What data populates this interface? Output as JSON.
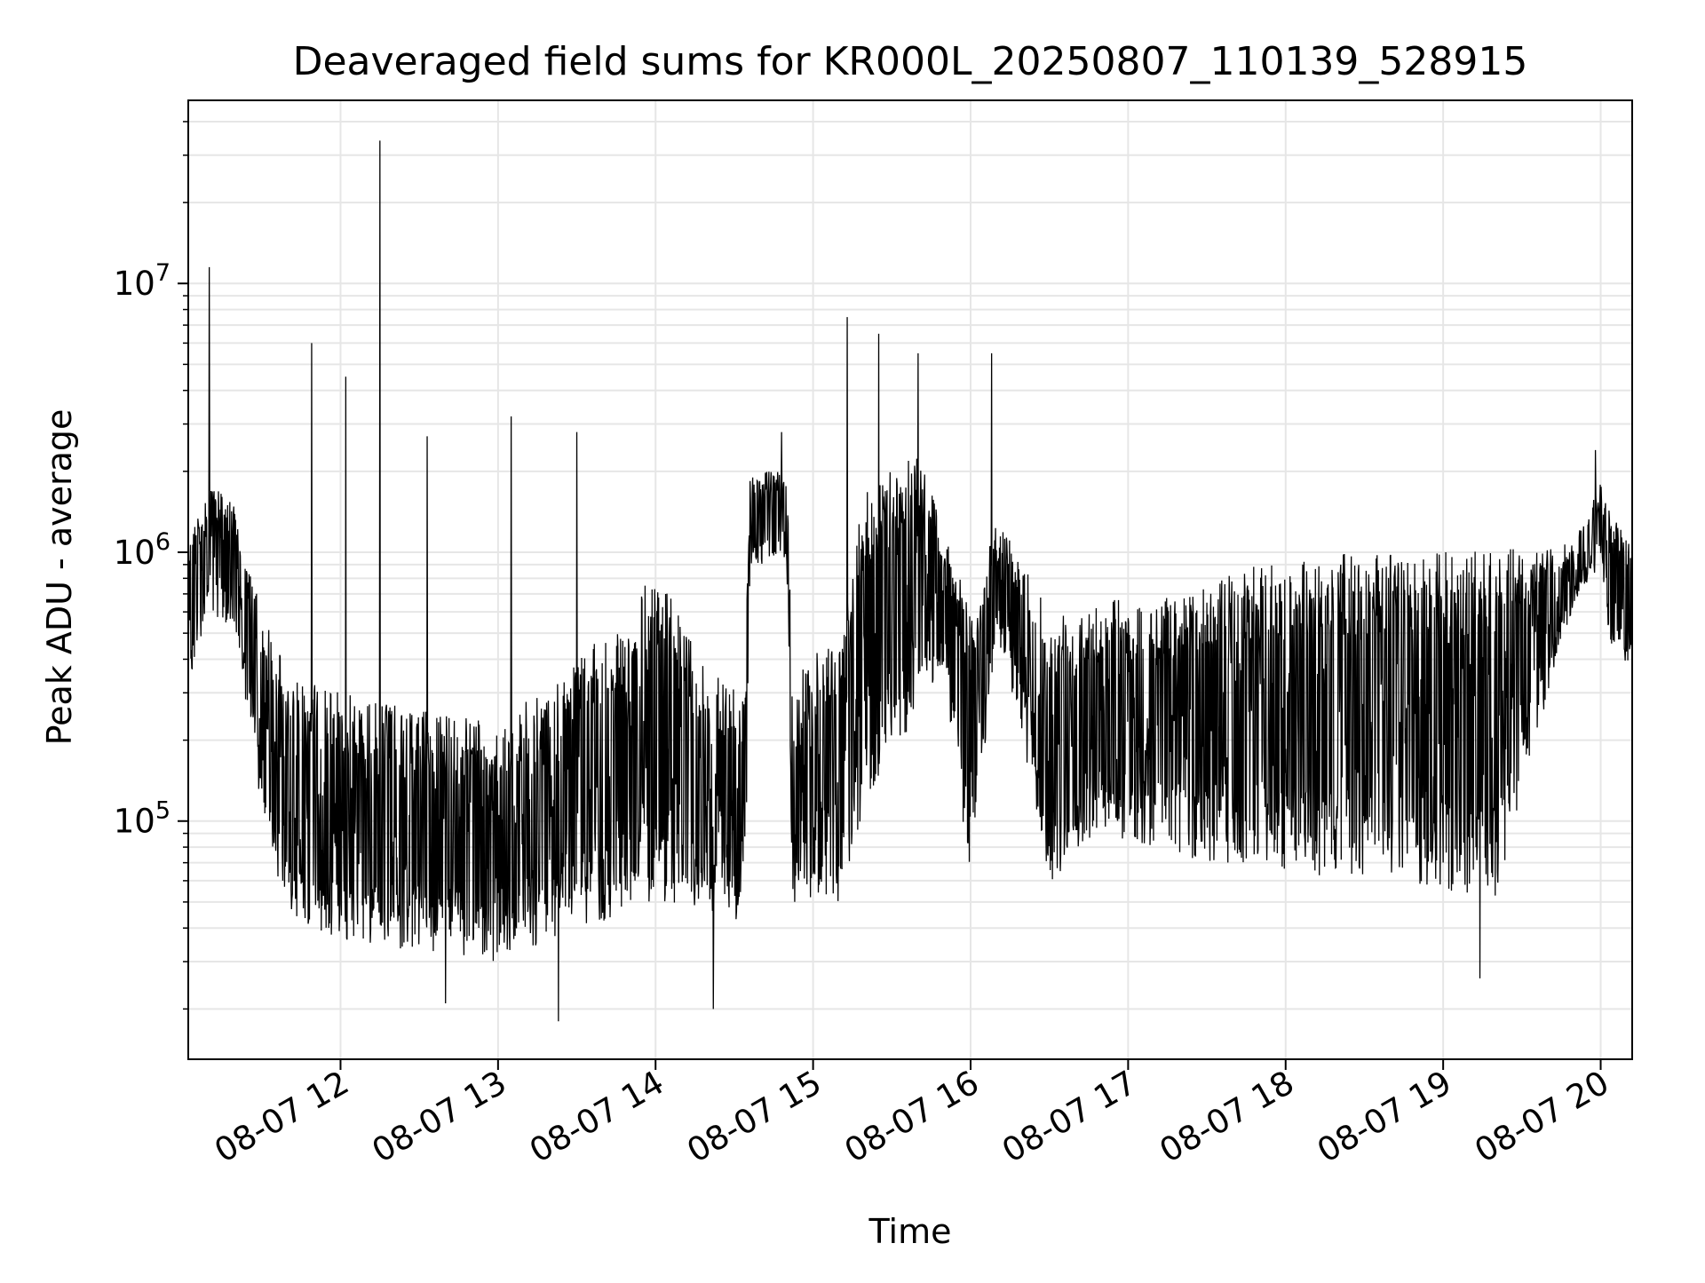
{
  "chart_data": {
    "type": "line",
    "title": "Deaveraged field sums for KR000L_20250807_110139_528915",
    "xlabel": "Time",
    "ylabel": "Peak ADU - average",
    "x_start": "2025-08-07 11:02",
    "x_end": "2025-08-07 20:12",
    "xlim": [
      "2025-08-07 11:02",
      "2025-08-07 20:12"
    ],
    "ylim": [
      13000,
      48000000
    ],
    "yscale": "log",
    "grid": true,
    "x_ticks": [
      "08-07 12",
      "08-07 13",
      "08-07 14",
      "08-07 15",
      "08-07 16",
      "08-07 17",
      "08-07 18",
      "08-07 19",
      "08-07 20"
    ],
    "y_ticks": [
      {
        "value": 100000,
        "base": "10",
        "exp": "5"
      },
      {
        "value": 1000000,
        "base": "10",
        "exp": "6"
      },
      {
        "value": 10000000,
        "base": "10",
        "exp": "7"
      }
    ],
    "series": [
      {
        "color": "#000000",
        "envelope": [
          {
            "time": "2025-08-07 11:02",
            "low": 300000,
            "high": 1100000
          },
          {
            "time": "2025-08-07 11:10",
            "low": 600000,
            "high": 1800000
          },
          {
            "time": "2025-08-07 11:20",
            "low": 500000,
            "high": 1500000
          },
          {
            "time": "2025-08-07 11:30",
            "low": 100000,
            "high": 600000
          },
          {
            "time": "2025-08-07 11:40",
            "low": 45000,
            "high": 350000
          },
          {
            "time": "2025-08-07 12:00",
            "low": 35000,
            "high": 300000
          },
          {
            "time": "2025-08-07 12:30",
            "low": 32000,
            "high": 260000
          },
          {
            "time": "2025-08-07 13:00",
            "low": 30000,
            "high": 230000
          },
          {
            "time": "2025-08-07 13:30",
            "low": 40000,
            "high": 400000
          },
          {
            "time": "2025-08-07 13:50",
            "low": 45000,
            "high": 600000
          },
          {
            "time": "2025-08-07 14:00",
            "low": 50000,
            "high": 900000
          },
          {
            "time": "2025-08-07 14:20",
            "low": 45000,
            "high": 350000
          },
          {
            "time": "2025-08-07 14:34",
            "low": 40000,
            "high": 320000
          },
          {
            "time": "2025-08-07 14:36",
            "low": 900000,
            "high": 2000000
          },
          {
            "time": "2025-08-07 14:50",
            "low": 900000,
            "high": 2000000
          },
          {
            "time": "2025-08-07 14:52",
            "low": 50000,
            "high": 400000
          },
          {
            "time": "2025-08-07 15:10",
            "low": 50000,
            "high": 450000
          },
          {
            "time": "2025-08-07 15:20",
            "low": 120000,
            "high": 1800000
          },
          {
            "time": "2025-08-07 15:40",
            "low": 250000,
            "high": 2500000
          },
          {
            "time": "2025-08-07 15:50",
            "low": 350000,
            "high": 1200000
          },
          {
            "time": "2025-08-07 16:00",
            "low": 60000,
            "high": 600000
          },
          {
            "time": "2025-08-07 16:10",
            "low": 500000,
            "high": 1300000
          },
          {
            "time": "2025-08-07 16:20",
            "low": 200000,
            "high": 1000000
          },
          {
            "time": "2025-08-07 16:30",
            "low": 55000,
            "high": 600000
          },
          {
            "time": "2025-08-07 16:50",
            "low": 90000,
            "high": 700000
          },
          {
            "time": "2025-08-07 17:10",
            "low": 80000,
            "high": 650000
          },
          {
            "time": "2025-08-07 17:30",
            "low": 70000,
            "high": 800000
          },
          {
            "time": "2025-08-07 18:00",
            "low": 65000,
            "high": 950000
          },
          {
            "time": "2025-08-07 18:30",
            "low": 60000,
            "high": 1000000
          },
          {
            "time": "2025-08-07 19:00",
            "low": 55000,
            "high": 1000000
          },
          {
            "time": "2025-08-07 19:20",
            "low": 50000,
            "high": 1050000
          },
          {
            "time": "2025-08-07 19:35",
            "low": 200000,
            "high": 1000000
          },
          {
            "time": "2025-08-07 19:50",
            "low": 650000,
            "high": 1100000
          },
          {
            "time": "2025-08-07 20:00",
            "low": 900000,
            "high": 1800000
          },
          {
            "time": "2025-08-07 20:05",
            "low": 350000,
            "high": 1400000
          },
          {
            "time": "2025-08-07 20:12",
            "low": 400000,
            "high": 1100000
          }
        ],
        "peaks": [
          {
            "time": "2025-08-07 11:10",
            "value": 11500000
          },
          {
            "time": "2025-08-07 11:49",
            "value": 6000000
          },
          {
            "time": "2025-08-07 12:02",
            "value": 4500000
          },
          {
            "time": "2025-08-07 12:15",
            "value": 34000000
          },
          {
            "time": "2025-08-07 12:33",
            "value": 2700000
          },
          {
            "time": "2025-08-07 13:05",
            "value": 3200000
          },
          {
            "time": "2025-08-07 13:30",
            "value": 2800000
          },
          {
            "time": "2025-08-07 14:48",
            "value": 2800000
          },
          {
            "time": "2025-08-07 15:13",
            "value": 7500000
          },
          {
            "time": "2025-08-07 15:25",
            "value": 6500000
          },
          {
            "time": "2025-08-07 15:40",
            "value": 5500000
          },
          {
            "time": "2025-08-07 16:08",
            "value": 5500000
          },
          {
            "time": "2025-08-07 19:58",
            "value": 2400000
          }
        ],
        "troughs": [
          {
            "time": "2025-08-07 13:23",
            "value": 18000
          },
          {
            "time": "2025-08-07 14:22",
            "value": 20000
          },
          {
            "time": "2025-08-07 12:40",
            "value": 21000
          },
          {
            "time": "2025-08-07 19:14",
            "value": 26000
          }
        ]
      }
    ]
  }
}
